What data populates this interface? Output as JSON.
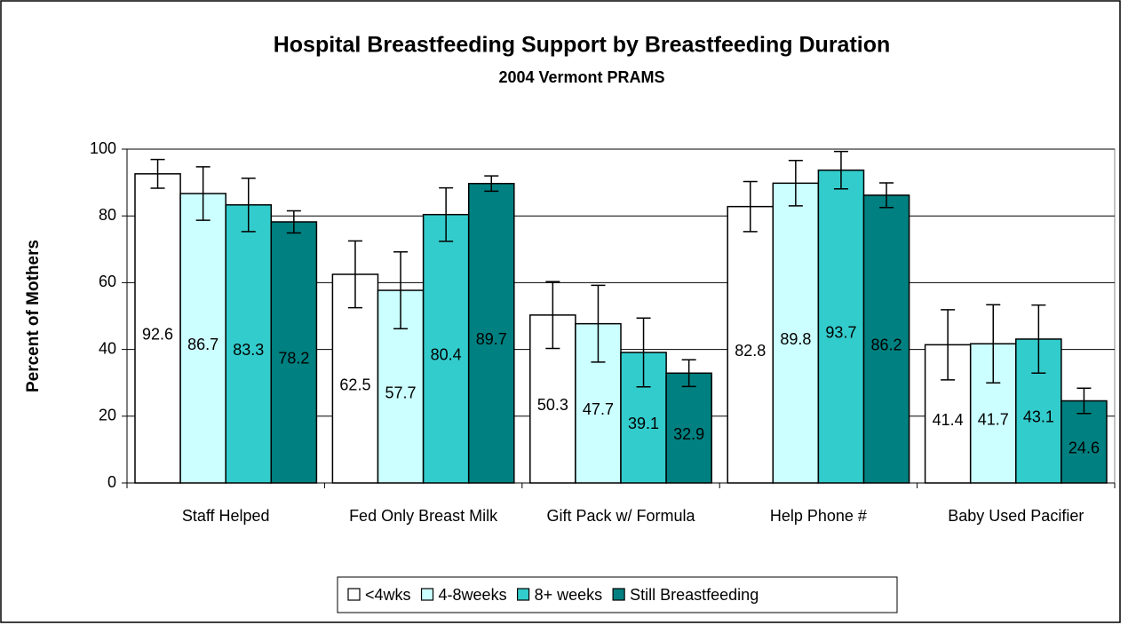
{
  "chart_data": {
    "type": "bar",
    "title": "Hospital Breastfeeding Support by Breastfeeding Duration",
    "subtitle": "2004 Vermont PRAMS",
    "y_label": "Percent of Mothers",
    "categories": [
      "Staff Helped",
      "Fed Only Breast Milk",
      "Gift Pack w/ Formula",
      "Help Phone #",
      "Baby Used Pacifier"
    ],
    "series": [
      {
        "name": "<4wks",
        "color": "#ffffff",
        "values": [
          92.6,
          62.5,
          50.3,
          82.8,
          41.4
        ],
        "errors": [
          4.3,
          10,
          10,
          7.5,
          10.5
        ]
      },
      {
        "name": "4-8weeks",
        "color": "#ccffff",
        "values": [
          86.7,
          57.7,
          47.7,
          89.8,
          41.7
        ],
        "errors": [
          8,
          11.5,
          11.5,
          6.8,
          11.7
        ]
      },
      {
        "name": "8+ weeks",
        "color": "#33cccc",
        "values": [
          83.3,
          80.4,
          39.1,
          93.7,
          43.1
        ],
        "errors": [
          8,
          8,
          10.3,
          5.6,
          10.2
        ]
      },
      {
        "name": "Still Breastfeeding",
        "color": "#008080",
        "values": [
          78.2,
          89.7,
          32.9,
          86.2,
          24.6
        ],
        "errors": [
          3.3,
          2.3,
          4,
          3.7,
          3.8
        ]
      }
    ],
    "ylim": [
      0,
      100
    ],
    "yticks": [
      0,
      20,
      40,
      60,
      80,
      100
    ],
    "grid": true,
    "legend": "bottom"
  }
}
